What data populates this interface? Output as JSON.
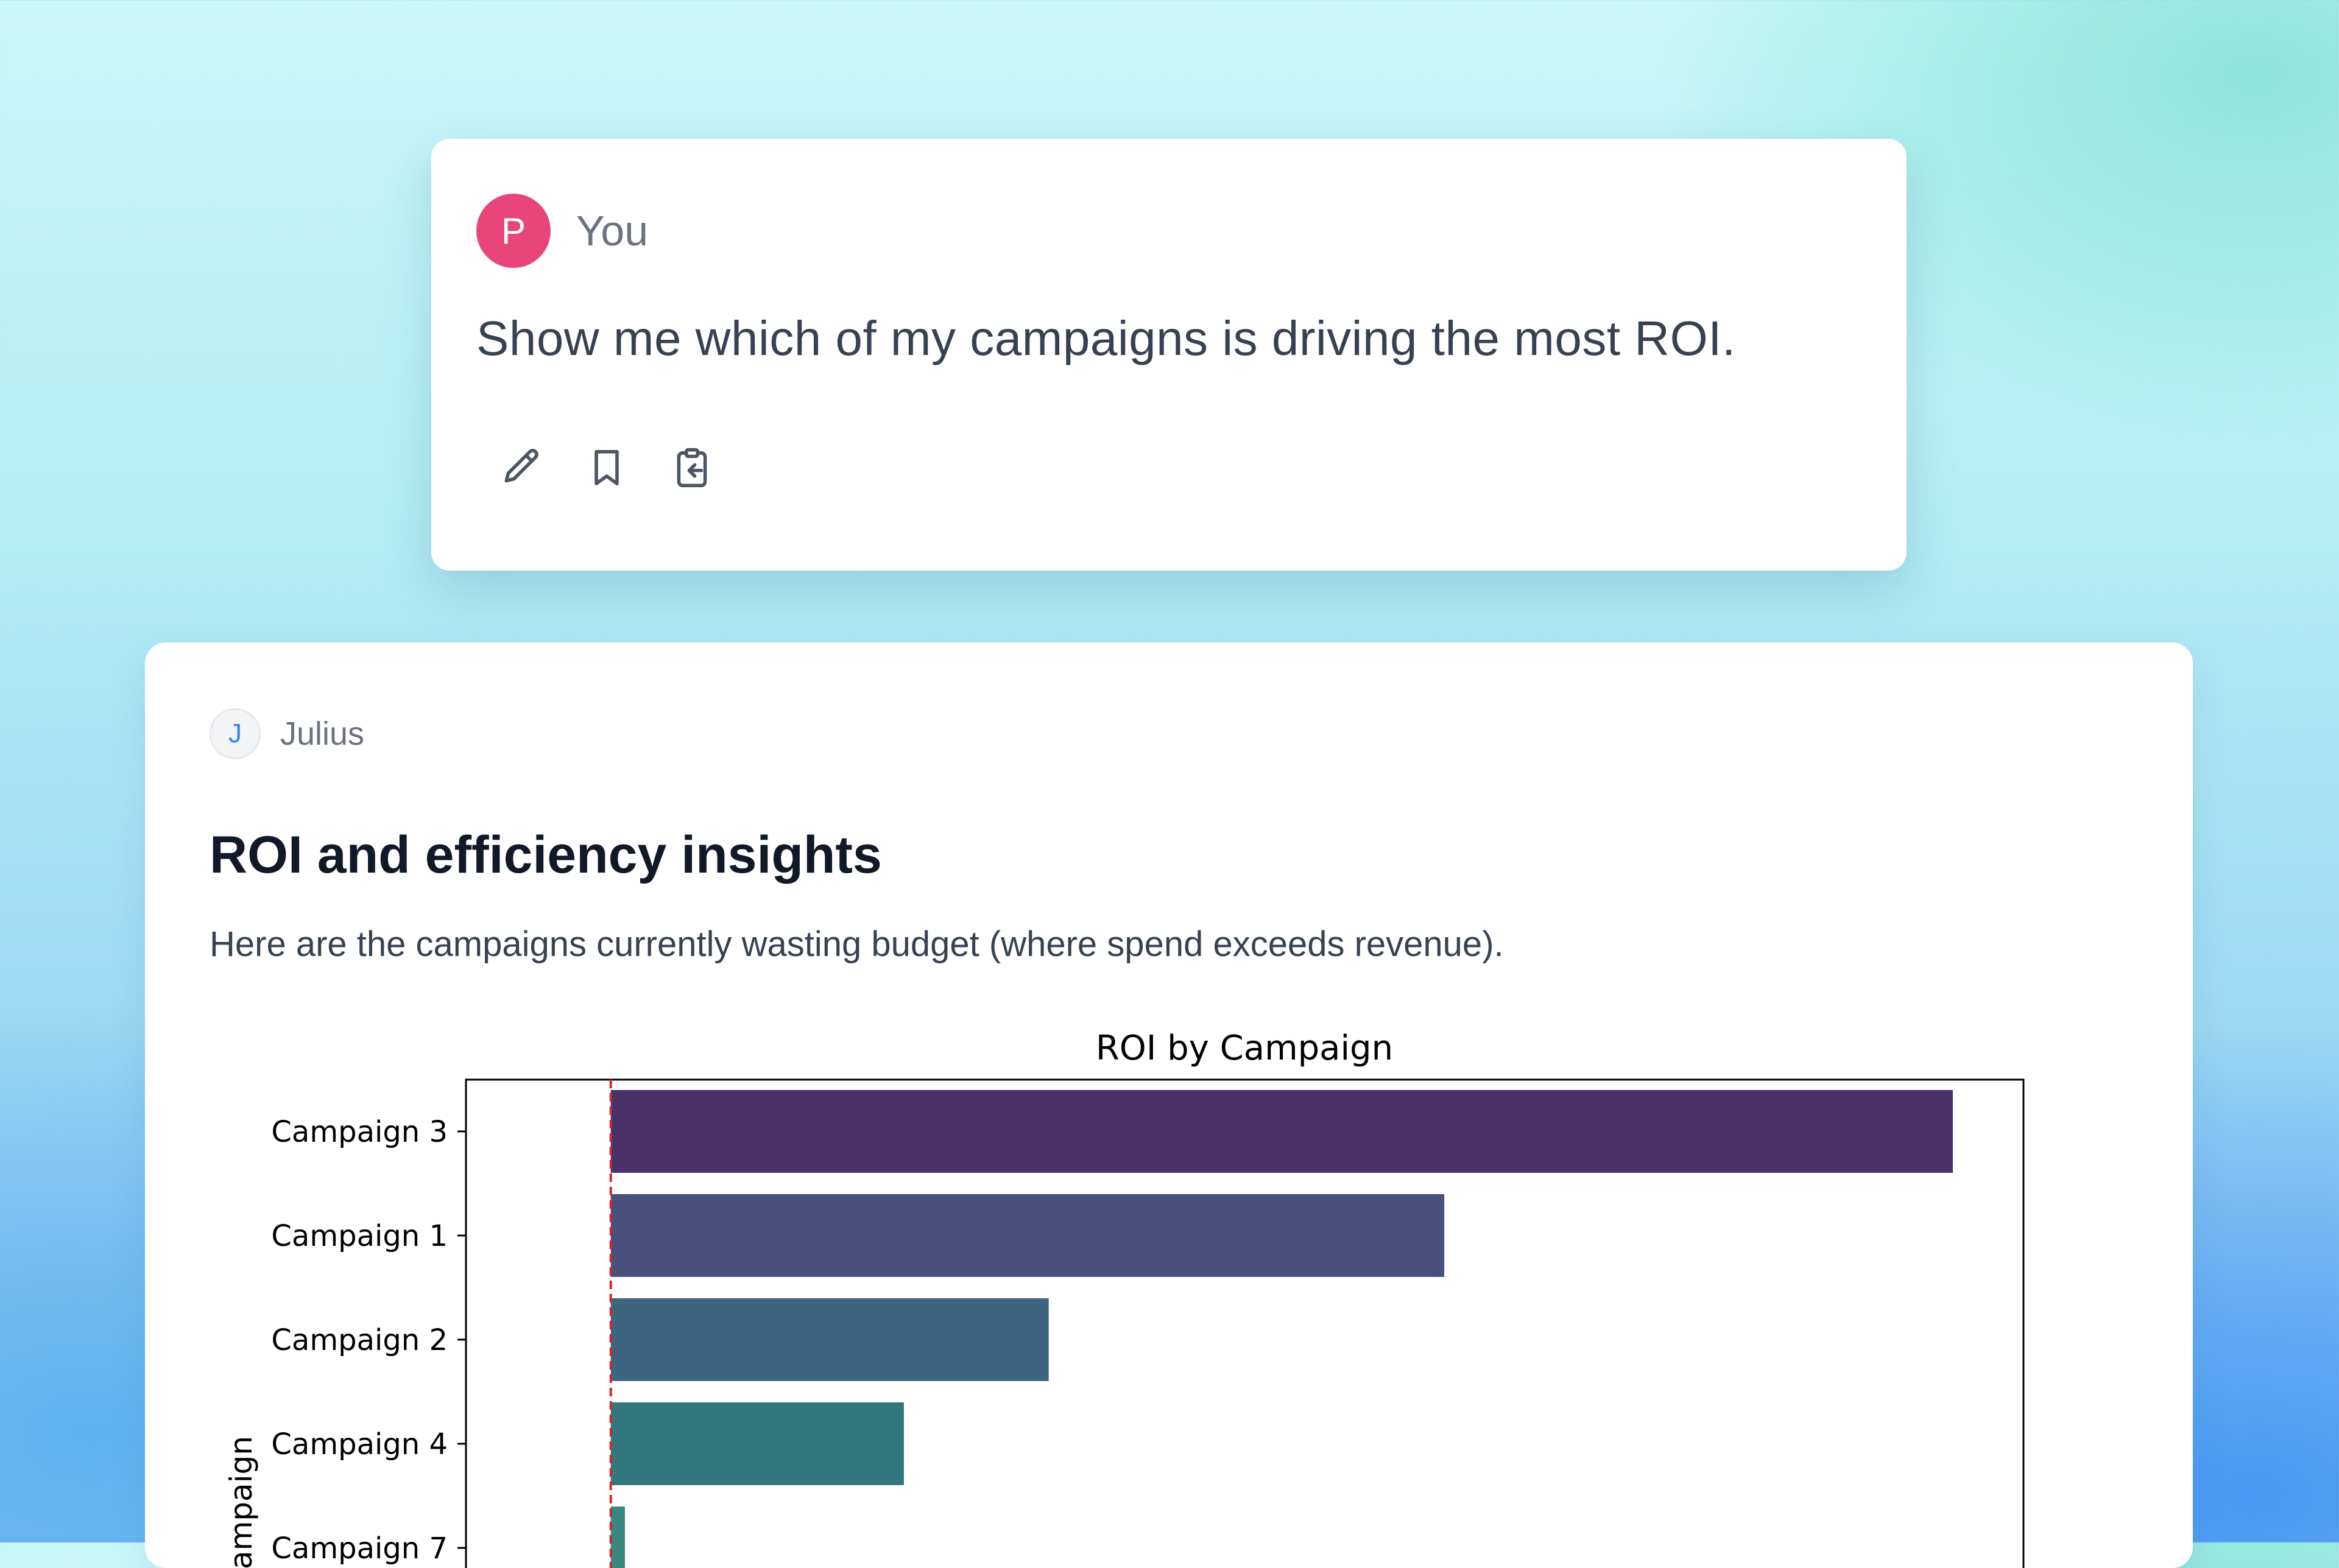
{
  "user": {
    "avatar_initial": "P",
    "name": "You",
    "message": "Show me which of my campaigns is driving the most ROI.",
    "avatar_color": "#e8457a"
  },
  "actions": [
    {
      "icon": "pencil-icon"
    },
    {
      "icon": "bookmark-icon"
    },
    {
      "icon": "clipboard-icon"
    }
  ],
  "assistant": {
    "avatar_initial": "J",
    "name": "Julius",
    "title": "ROI and efficiency insights",
    "text": "Here are the campaigns currently wasting budget (where spend exceeds revenue)."
  },
  "chart_data": {
    "type": "bar",
    "orientation": "horizontal",
    "title": "ROI by Campaign",
    "ylabel": "Campaign",
    "xlabel": "",
    "categories": [
      "Campaign 3",
      "Campaign 1",
      "Campaign 2",
      "Campaign 4",
      "Campaign 7"
    ],
    "values": [
      3.8,
      2.36,
      1.24,
      0.83,
      0.04
    ],
    "colors": [
      "#4a3169",
      "#48507c",
      "#3d657f",
      "#31777d",
      "#3a8680"
    ],
    "xlim": [
      -0.41,
      4.0
    ],
    "reference_line": {
      "x": 0,
      "color": "#d62728",
      "style": "dashed"
    },
    "grid": false
  }
}
